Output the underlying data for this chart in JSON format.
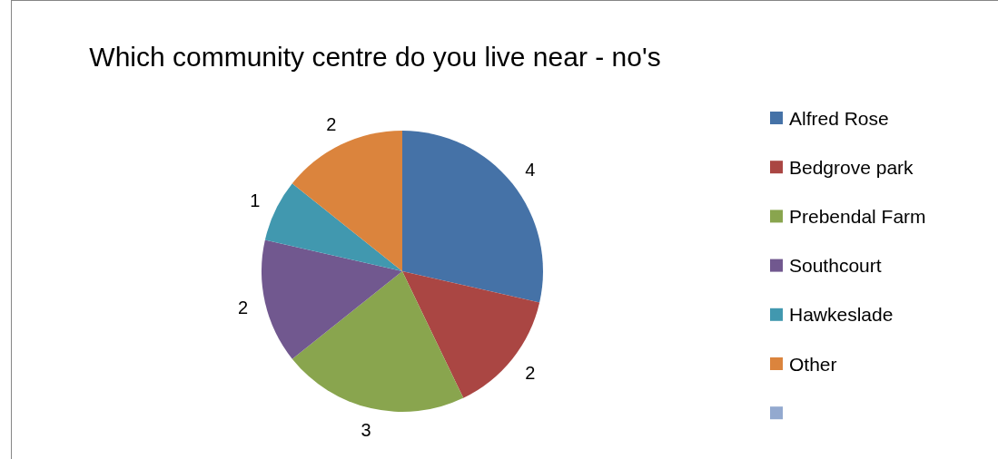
{
  "chart_data": {
    "type": "pie",
    "title": "Which community centre do you live near - no's",
    "categories": [
      "Alfred Rose",
      "Bedgrove park",
      "Prebendal Farm",
      "Southcourt",
      "Hawkeslade",
      "Other",
      null
    ],
    "values": [
      4,
      2,
      3,
      2,
      1,
      2,
      0
    ],
    "colors": [
      "#4572a7",
      "#aa4643",
      "#89a54e",
      "#71588f",
      "#4198af",
      "#db843d",
      "#93a9cf"
    ],
    "value_labels": [
      "4",
      "2",
      "3",
      "2",
      "1",
      "2",
      null
    ],
    "legend": "right"
  }
}
